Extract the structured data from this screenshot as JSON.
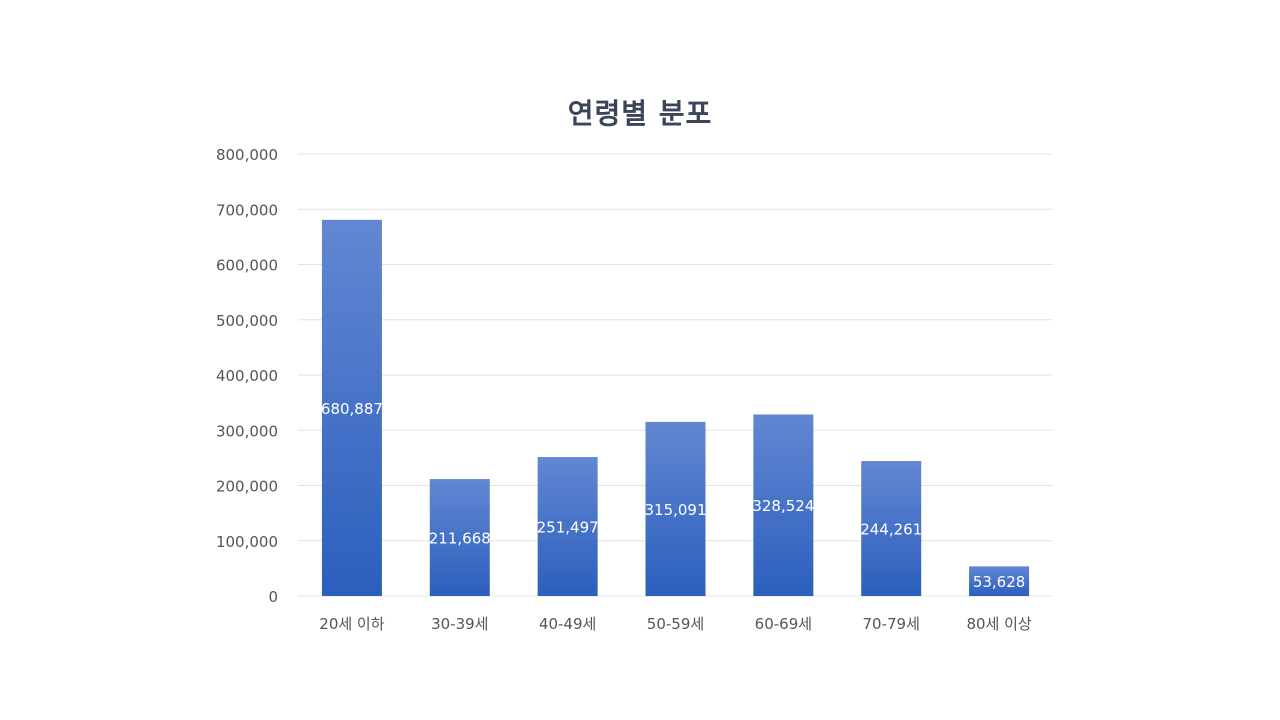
{
  "chart_data": {
    "type": "bar",
    "title": "연령별 분포",
    "xlabel": "",
    "ylabel": "",
    "categories": [
      "20세 이하",
      "30-39세",
      "40-49세",
      "50-59세",
      "60-69세",
      "70-79세",
      "80세 이상"
    ],
    "values": [
      680887,
      211668,
      251497,
      315091,
      328524,
      244261,
      53628
    ],
    "data_labels": [
      "680,887",
      "211,668",
      "251,497",
      "315,091",
      "328,524",
      "244,261",
      "53,628"
    ],
    "ylim": [
      0,
      800000
    ],
    "y_ticks": [
      0,
      100000,
      200000,
      300000,
      400000,
      500000,
      600000,
      700000,
      800000
    ],
    "y_tick_labels": [
      "0",
      "100,000",
      "200,000",
      "300,000",
      "400,000",
      "500,000",
      "600,000",
      "700,000",
      "800,000"
    ],
    "grid": true,
    "legend": "none",
    "colors": {
      "bar_top": "#6287d2",
      "bar_bottom": "#2b5fbd",
      "grid": "#e3e3e3",
      "axis_text": "#555555",
      "data_label": "#ffffff",
      "title": "#3b4559"
    }
  }
}
